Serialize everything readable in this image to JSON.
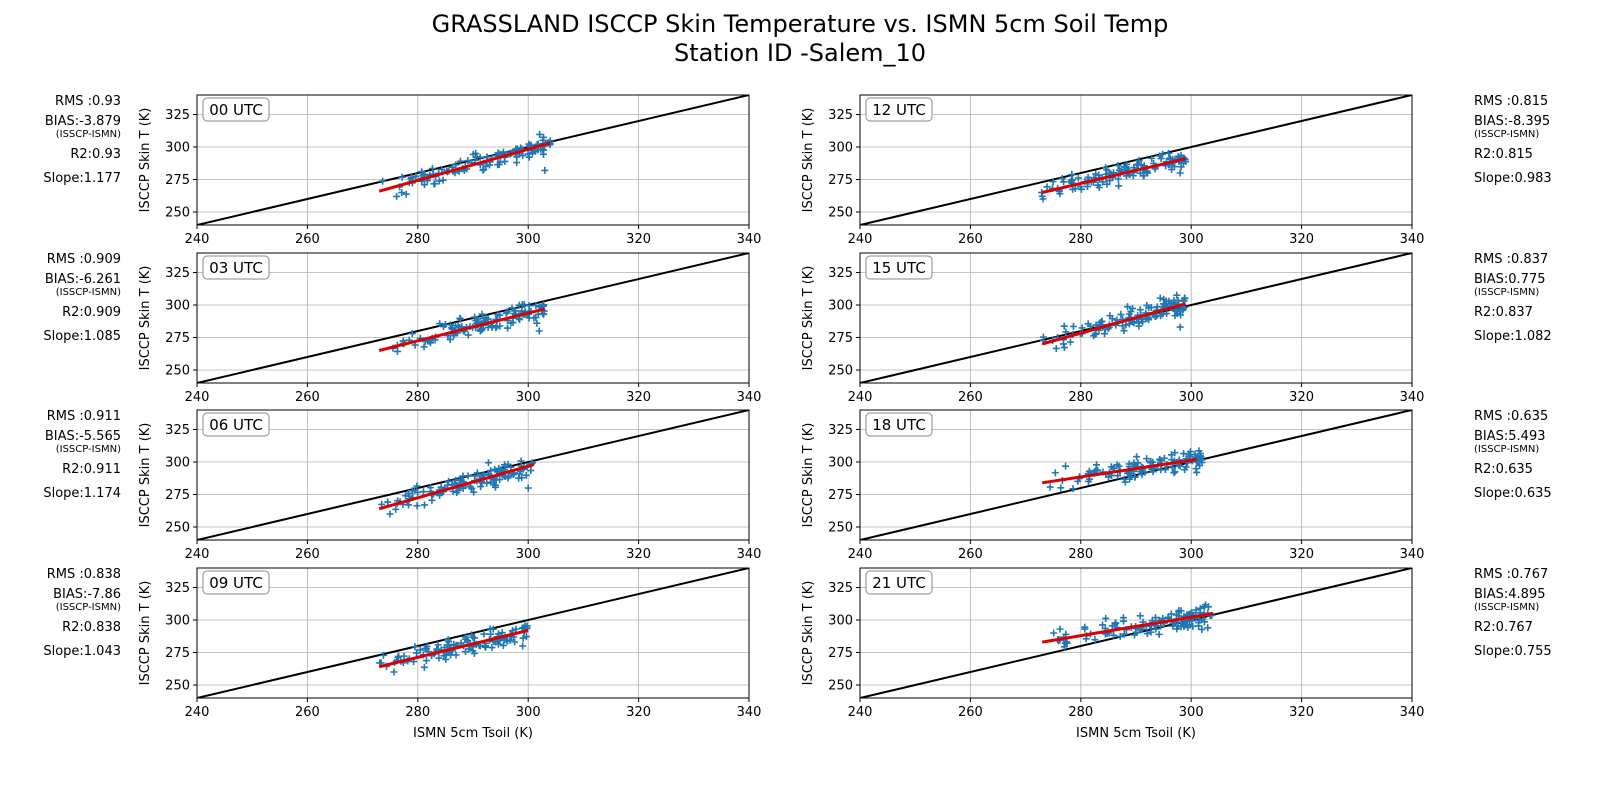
{
  "figure": {
    "title_line1": "GRASSLAND ISCCP Skin Temperature vs. ISMN 5cm Soil Temp",
    "title_line2": "Station ID -Salem_10"
  },
  "colors": {
    "points": "#1f77b4",
    "fit_line": "#dd0000",
    "one_to_one": "#000000",
    "grid": "#b0b0b0"
  },
  "chart_data": [
    {
      "type": "scatter",
      "label": "00 UTC",
      "xlabel": "",
      "ylabel": "ISCCP Skin T (K)",
      "xlim": [
        240,
        340
      ],
      "ylim": [
        240,
        340
      ],
      "xticks": [
        240,
        260,
        280,
        300,
        320,
        340
      ],
      "yticks": [
        250,
        275,
        300,
        325
      ],
      "grid": true,
      "one_to_one_line": true,
      "fit": {
        "x": [
          273,
          304
        ],
        "y": [
          266,
          303
        ]
      },
      "point_range": {
        "x": [
          273,
          304
        ],
        "y": [
          262,
          311
        ]
      },
      "stats": {
        "rms": "RMS :0.93",
        "bias": "BIAS:-3.879",
        "bias_note": "(ISSCP-ISMN)",
        "r2": "R2:0.93",
        "slope": "Slope:1.177"
      }
    },
    {
      "type": "scatter",
      "label": "12 UTC",
      "xlabel": "",
      "ylabel": "ISCCP Skin T (K)",
      "xlim": [
        240,
        340
      ],
      "ylim": [
        240,
        340
      ],
      "xticks": [
        240,
        260,
        280,
        300,
        320,
        340
      ],
      "yticks": [
        250,
        275,
        300,
        325
      ],
      "grid": true,
      "one_to_one_line": true,
      "fit": {
        "x": [
          273,
          299
        ],
        "y": [
          265,
          291
        ]
      },
      "point_range": {
        "x": [
          272,
          299
        ],
        "y": [
          260,
          303
        ]
      },
      "stats": {
        "rms": "RMS :0.815",
        "bias": "BIAS:-8.395",
        "bias_note": "(ISSCP-ISMN)",
        "r2": "R2:0.815",
        "slope": "Slope:0.983"
      }
    },
    {
      "type": "scatter",
      "label": "03 UTC",
      "xlabel": "",
      "ylabel": "ISCCP Skin T (K)",
      "xlim": [
        240,
        340
      ],
      "ylim": [
        240,
        340
      ],
      "xticks": [
        240,
        260,
        280,
        300,
        320,
        340
      ],
      "yticks": [
        250,
        275,
        300,
        325
      ],
      "grid": true,
      "one_to_one_line": true,
      "fit": {
        "x": [
          273,
          303
        ],
        "y": [
          265,
          297
        ]
      },
      "point_range": {
        "x": [
          273,
          303
        ],
        "y": [
          260,
          306
        ]
      },
      "stats": {
        "rms": "RMS :0.909",
        "bias": "BIAS:-6.261",
        "bias_note": "(ISSCP-ISMN)",
        "r2": "R2:0.909",
        "slope": "Slope:1.085"
      }
    },
    {
      "type": "scatter",
      "label": "15 UTC",
      "xlabel": "",
      "ylabel": "ISCCP Skin T (K)",
      "xlim": [
        240,
        340
      ],
      "ylim": [
        240,
        340
      ],
      "xticks": [
        240,
        260,
        280,
        300,
        320,
        340
      ],
      "yticks": [
        250,
        275,
        300,
        325
      ],
      "grid": true,
      "one_to_one_line": true,
      "fit": {
        "x": [
          273,
          299
        ],
        "y": [
          270,
          301
        ]
      },
      "point_range": {
        "x": [
          272,
          299
        ],
        "y": [
          263,
          308
        ]
      },
      "stats": {
        "rms": "RMS :0.837",
        "bias": "BIAS:0.775",
        "bias_note": "(ISSCP-ISMN)",
        "r2": "R2:0.837",
        "slope": "Slope:1.082"
      }
    },
    {
      "type": "scatter",
      "label": "06 UTC",
      "xlabel": "",
      "ylabel": "ISCCP Skin T (K)",
      "xlim": [
        240,
        340
      ],
      "ylim": [
        240,
        340
      ],
      "xticks": [
        240,
        260,
        280,
        300,
        320,
        340
      ],
      "yticks": [
        250,
        275,
        300,
        325
      ],
      "grid": true,
      "one_to_one_line": true,
      "fit": {
        "x": [
          273,
          301
        ],
        "y": [
          264,
          298
        ]
      },
      "point_range": {
        "x": [
          272,
          301
        ],
        "y": [
          260,
          305
        ]
      },
      "stats": {
        "rms": "RMS :0.911",
        "bias": "BIAS:-5.565",
        "bias_note": "(ISSCP-ISMN)",
        "r2": "R2:0.911",
        "slope": "Slope:1.174"
      }
    },
    {
      "type": "scatter",
      "label": "18 UTC",
      "xlabel": "",
      "ylabel": "ISCCP Skin T (K)",
      "xlim": [
        240,
        340
      ],
      "ylim": [
        240,
        340
      ],
      "xticks": [
        240,
        260,
        280,
        300,
        320,
        340
      ],
      "yticks": [
        250,
        275,
        300,
        325
      ],
      "grid": true,
      "one_to_one_line": true,
      "fit": {
        "x": [
          273,
          301
        ],
        "y": [
          284,
          302
        ]
      },
      "point_range": {
        "x": [
          273,
          302
        ],
        "y": [
          272,
          312
        ]
      },
      "stats": {
        "rms": "RMS :0.635",
        "bias": "BIAS:5.493",
        "bias_note": "(ISSCP-ISMN)",
        "r2": "R2:0.635",
        "slope": "Slope:0.635"
      }
    },
    {
      "type": "scatter",
      "label": "09 UTC",
      "xlabel": "ISMN 5cm Tsoil (K)",
      "ylabel": "ISCCP Skin T (K)",
      "xlim": [
        240,
        340
      ],
      "ylim": [
        240,
        340
      ],
      "xticks": [
        240,
        260,
        280,
        300,
        320,
        340
      ],
      "yticks": [
        250,
        275,
        300,
        325
      ],
      "grid": true,
      "one_to_one_line": true,
      "fit": {
        "x": [
          273,
          300
        ],
        "y": [
          264,
          292
        ]
      },
      "point_range": {
        "x": [
          272,
          300
        ],
        "y": [
          260,
          307
        ]
      },
      "stats": {
        "rms": "RMS :0.838",
        "bias": "BIAS:-7.86",
        "bias_note": "(ISSCP-ISMN)",
        "r2": "R2:0.838",
        "slope": "Slope:1.043"
      }
    },
    {
      "type": "scatter",
      "label": "21 UTC",
      "xlabel": "ISMN 5cm Tsoil (K)",
      "ylabel": "ISCCP Skin T (K)",
      "xlim": [
        240,
        340
      ],
      "ylim": [
        240,
        340
      ],
      "xticks": [
        240,
        260,
        280,
        300,
        320,
        340
      ],
      "yticks": [
        250,
        275,
        300,
        325
      ],
      "grid": true,
      "one_to_one_line": true,
      "fit": {
        "x": [
          273,
          304
        ],
        "y": [
          283,
          305
        ]
      },
      "point_range": {
        "x": [
          273,
          304
        ],
        "y": [
          274,
          314
        ]
      },
      "stats": {
        "rms": "RMS :0.767",
        "bias": "BIAS:4.895",
        "bias_note": "(ISSCP-ISMN)",
        "r2": "R2:0.767",
        "slope": "Slope:0.755"
      }
    }
  ]
}
